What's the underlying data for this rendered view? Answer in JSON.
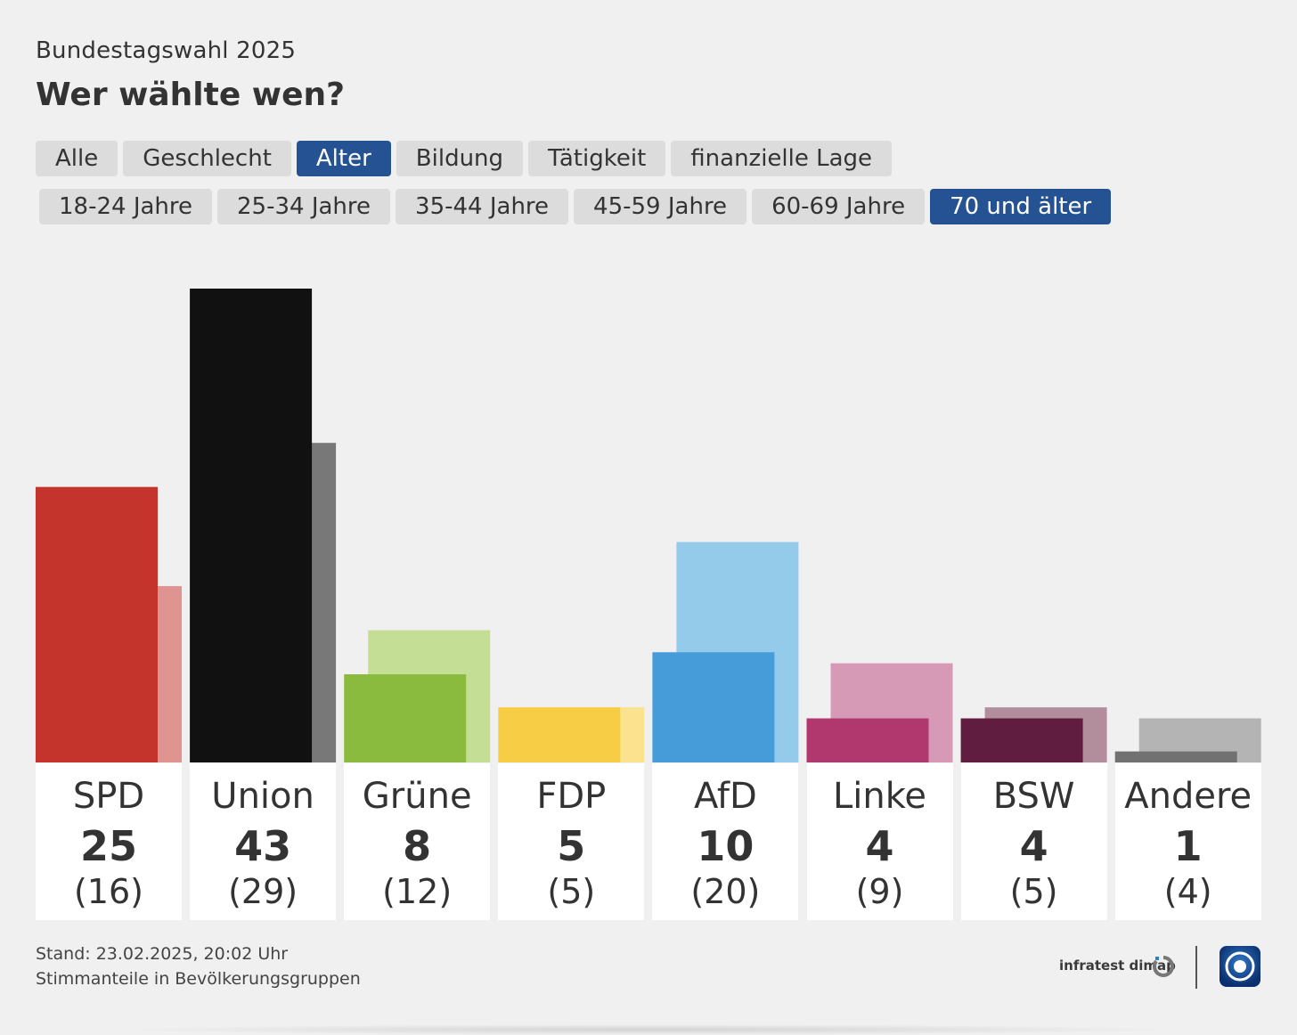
{
  "header": {
    "subtitle": "Bundestagswahl 2025",
    "title": "Wer wählte wen?"
  },
  "tabs": [
    {
      "label": "Alle",
      "active": false
    },
    {
      "label": "Geschlecht",
      "active": false
    },
    {
      "label": "Alter",
      "active": true
    },
    {
      "label": "Bildung",
      "active": false
    },
    {
      "label": "Tätigkeit",
      "active": false
    },
    {
      "label": "finanzielle Lage",
      "active": false
    }
  ],
  "subtabs": [
    {
      "label": "18-24 Jahre",
      "active": false
    },
    {
      "label": "25-34 Jahre",
      "active": false
    },
    {
      "label": "35-44 Jahre",
      "active": false
    },
    {
      "label": "45-59 Jahre",
      "active": false
    },
    {
      "label": "60-69 Jahre",
      "active": false
    },
    {
      "label": "70 und älter",
      "active": true
    }
  ],
  "chart_data": {
    "type": "bar",
    "categories": [
      "SPD",
      "Union",
      "Grüne",
      "FDP",
      "AfD",
      "Linke",
      "BSW",
      "Andere"
    ],
    "series": [
      {
        "values": [
          25,
          43,
          8,
          5,
          10,
          4,
          4,
          1
        ]
      },
      {
        "values": [
          16,
          29,
          12,
          5,
          20,
          9,
          5,
          4
        ]
      }
    ],
    "value_labels": [
      "25",
      "43",
      "8",
      "5",
      "10",
      "4",
      "4",
      "1"
    ],
    "previous_labels": [
      "(16)",
      "(29)",
      "(12)",
      "(5)",
      "(20)",
      "(9)",
      "(5)",
      "(4)"
    ],
    "colors": [
      "#c4342c",
      "#111111",
      "#8abb3f",
      "#f7cd46",
      "#469bd9",
      "#b0386f",
      "#601d40",
      "#717171"
    ],
    "colors_previous": [
      "#e09492",
      "#787878",
      "#c5de96",
      "#fbe28f",
      "#94cbea",
      "#d69ab7",
      "#b28e9c",
      "#b4b4b4"
    ],
    "ylim": [
      0,
      43
    ]
  },
  "footer": {
    "stand": "Stand: 23.02.2025, 20:02 Uhr",
    "note": "Stimmanteile in Bevölkerungsgruppen",
    "source": "infratest dimap"
  }
}
